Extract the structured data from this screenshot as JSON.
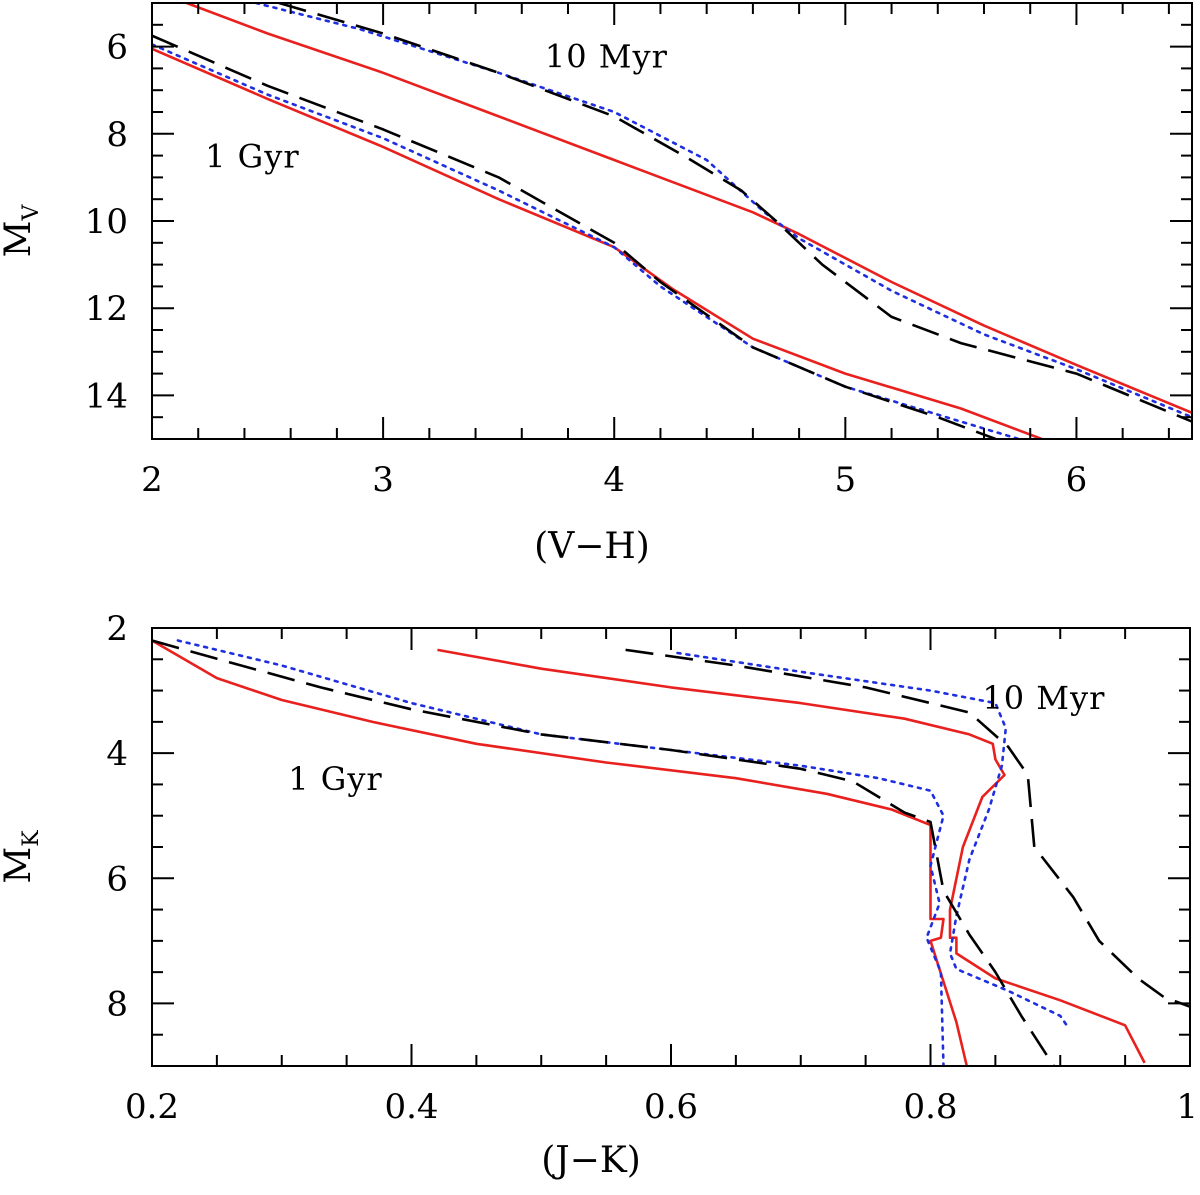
{
  "chart_data": [
    {
      "type": "line",
      "xlabel": "(V−H)",
      "ylabel": "M",
      "ylabel_sub": "V",
      "xlim": [
        2,
        6.5
      ],
      "ylim": [
        15,
        5
      ],
      "y_inverted": true,
      "x_ticks": [
        2,
        3,
        4,
        5,
        6
      ],
      "x_tick_labels": [
        "2",
        "3",
        "4",
        "5",
        "6"
      ],
      "x_minor_step": 0.2,
      "y_ticks": [
        6,
        8,
        10,
        12,
        14
      ],
      "y_tick_labels": [
        "6",
        "8",
        "10",
        "12",
        "14"
      ],
      "y_minor_step": 0.5,
      "annotations": [
        {
          "text": "10 Myr",
          "x": 3.7,
          "y": 6.2
        },
        {
          "text": "1 Gyr",
          "x": 2.23,
          "y": 8.5
        }
      ],
      "series": [
        {
          "style": "solid",
          "color": "#e8211f",
          "label": "10 Myr",
          "points": [
            [
              2.15,
              5.0
            ],
            [
              2.5,
              5.7
            ],
            [
              3.0,
              6.6
            ],
            [
              3.5,
              7.6
            ],
            [
              4.0,
              8.6
            ],
            [
              4.6,
              9.8
            ],
            [
              4.8,
              10.3
            ],
            [
              5.2,
              11.4
            ],
            [
              5.6,
              12.4
            ],
            [
              6.0,
              13.3
            ],
            [
              6.5,
              14.4
            ]
          ]
        },
        {
          "style": "dotted",
          "color": "#1f2fe0",
          "label": "10 Myr",
          "points": [
            [
              2.45,
              5.0
            ],
            [
              2.9,
              5.6
            ],
            [
              3.5,
              6.6
            ],
            [
              4.0,
              7.5
            ],
            [
              4.4,
              8.6
            ],
            [
              4.65,
              9.8
            ],
            [
              4.8,
              10.4
            ],
            [
              5.2,
              11.6
            ],
            [
              5.6,
              12.6
            ],
            [
              6.0,
              13.4
            ],
            [
              6.5,
              14.5
            ]
          ]
        },
        {
          "style": "dashed",
          "color": "#000000",
          "label": "10 Myr",
          "points": [
            [
              2.55,
              5.0
            ],
            [
              3.0,
              5.7
            ],
            [
              3.5,
              6.6
            ],
            [
              4.0,
              7.6
            ],
            [
              4.3,
              8.5
            ],
            [
              4.55,
              9.3
            ],
            [
              4.7,
              10.0
            ],
            [
              4.9,
              11.0
            ],
            [
              5.2,
              12.2
            ],
            [
              5.5,
              12.8
            ],
            [
              6.0,
              13.5
            ],
            [
              6.5,
              14.6
            ]
          ]
        },
        {
          "style": "solid",
          "color": "#e8211f",
          "label": "1 Gyr",
          "points": [
            [
              2.0,
              6.05
            ],
            [
              2.5,
              7.2
            ],
            [
              3.0,
              8.3
            ],
            [
              3.5,
              9.5
            ],
            [
              4.0,
              10.6
            ],
            [
              4.25,
              11.55
            ],
            [
              4.6,
              12.7
            ],
            [
              5.0,
              13.5
            ],
            [
              5.5,
              14.3
            ],
            [
              5.85,
              15.0
            ]
          ]
        },
        {
          "style": "dotted",
          "color": "#1f2fe0",
          "label": "1 Gyr",
          "points": [
            [
              2.0,
              5.95
            ],
            [
              2.5,
              7.1
            ],
            [
              3.0,
              8.1
            ],
            [
              3.5,
              9.3
            ],
            [
              4.0,
              10.6
            ],
            [
              4.2,
              11.5
            ],
            [
              4.6,
              12.9
            ],
            [
              5.0,
              13.8
            ],
            [
              5.5,
              14.6
            ],
            [
              5.75,
              15.0
            ]
          ]
        },
        {
          "style": "dashed",
          "color": "#000000",
          "label": "1 Gyr",
          "points": [
            [
              2.0,
              5.75
            ],
            [
              2.5,
              6.9
            ],
            [
              3.0,
              7.9
            ],
            [
              3.5,
              9.0
            ],
            [
              4.0,
              10.5
            ],
            [
              4.2,
              11.4
            ],
            [
              4.6,
              12.9
            ],
            [
              5.0,
              13.8
            ],
            [
              5.4,
              14.5
            ],
            [
              5.65,
              15.0
            ]
          ]
        }
      ]
    },
    {
      "type": "line",
      "xlabel": "(J−K)",
      "ylabel": "M",
      "ylabel_sub": "K",
      "xlim": [
        0.2,
        1.0
      ],
      "ylim": [
        9,
        2
      ],
      "y_inverted": true,
      "x_ticks": [
        0.2,
        0.4,
        0.6,
        0.8,
        1.0
      ],
      "x_tick_labels": [
        "0.2",
        "0.4",
        "0.6",
        "0.8",
        "1"
      ],
      "x_minor_step": 0.05,
      "y_ticks": [
        2,
        4,
        6,
        8
      ],
      "y_tick_labels": [
        "2",
        "4",
        "6",
        "8"
      ],
      "y_minor_step": 0.5,
      "annotations": [
        {
          "text": "10 Myr",
          "x": 0.84,
          "y": 3.1
        },
        {
          "text": "1 Gyr",
          "x": 0.305,
          "y": 4.4
        }
      ],
      "series": [
        {
          "style": "solid",
          "color": "#e8211f",
          "label": "10 Myr",
          "points": [
            [
              0.42,
              2.35
            ],
            [
              0.5,
              2.65
            ],
            [
              0.6,
              2.95
            ],
            [
              0.7,
              3.2
            ],
            [
              0.78,
              3.45
            ],
            [
              0.83,
              3.7
            ],
            [
              0.848,
              3.85
            ],
            [
              0.85,
              4.1
            ],
            [
              0.857,
              4.35
            ],
            [
              0.84,
              4.7
            ],
            [
              0.825,
              5.5
            ],
            [
              0.815,
              6.5
            ],
            [
              0.815,
              6.95
            ],
            [
              0.82,
              6.95
            ],
            [
              0.82,
              7.2
            ],
            [
              0.85,
              7.6
            ],
            [
              0.9,
              7.95
            ],
            [
              0.95,
              8.35
            ],
            [
              0.965,
              8.95
            ]
          ]
        },
        {
          "style": "dotted",
          "color": "#1f2fe0",
          "label": "10 Myr",
          "points": [
            [
              0.605,
              2.4
            ],
            [
              0.7,
              2.7
            ],
            [
              0.8,
              3.0
            ],
            [
              0.85,
              3.2
            ],
            [
              0.858,
              3.6
            ],
            [
              0.855,
              4.2
            ],
            [
              0.845,
              4.9
            ],
            [
              0.83,
              5.7
            ],
            [
              0.82,
              6.6
            ],
            [
              0.815,
              7.2
            ],
            [
              0.82,
              7.45
            ],
            [
              0.86,
              7.8
            ],
            [
              0.9,
              8.2
            ],
            [
              0.905,
              8.35
            ]
          ]
        },
        {
          "style": "dashed",
          "color": "#000000",
          "label": "10 Myr",
          "points": [
            [
              0.565,
              2.35
            ],
            [
              0.65,
              2.6
            ],
            [
              0.75,
              2.95
            ],
            [
              0.83,
              3.35
            ],
            [
              0.86,
              3.9
            ],
            [
              0.875,
              4.35
            ],
            [
              0.88,
              5.5
            ],
            [
              0.91,
              6.3
            ],
            [
              0.93,
              7.0
            ],
            [
              0.96,
              7.6
            ],
            [
              0.98,
              7.9
            ],
            [
              1.0,
              8.05
            ]
          ]
        },
        {
          "style": "solid",
          "color": "#e8211f",
          "label": "1 Gyr",
          "points": [
            [
              0.2,
              2.2
            ],
            [
              0.25,
              2.8
            ],
            [
              0.3,
              3.15
            ],
            [
              0.37,
              3.5
            ],
            [
              0.45,
              3.85
            ],
            [
              0.55,
              4.15
            ],
            [
              0.65,
              4.4
            ],
            [
              0.72,
              4.65
            ],
            [
              0.77,
              4.9
            ],
            [
              0.8,
              5.15
            ],
            [
              0.8,
              6.65
            ],
            [
              0.81,
              6.65
            ],
            [
              0.808,
              6.95
            ],
            [
              0.8,
              7.0
            ],
            [
              0.82,
              8.3
            ],
            [
              0.828,
              9.0
            ]
          ]
        },
        {
          "style": "dotted",
          "color": "#1f2fe0",
          "label": "1 Gyr",
          "points": [
            [
              0.22,
              2.2
            ],
            [
              0.3,
              2.6
            ],
            [
              0.4,
              3.2
            ],
            [
              0.5,
              3.7
            ],
            [
              0.6,
              3.95
            ],
            [
              0.7,
              4.2
            ],
            [
              0.76,
              4.4
            ],
            [
              0.8,
              4.6
            ],
            [
              0.81,
              5.0
            ],
            [
              0.8,
              5.8
            ],
            [
              0.807,
              6.4
            ],
            [
              0.797,
              6.95
            ],
            [
              0.808,
              7.5
            ],
            [
              0.81,
              9.0
            ]
          ]
        },
        {
          "style": "dashed",
          "color": "#000000",
          "label": "1 Gyr",
          "points": [
            [
              0.2,
              2.2
            ],
            [
              0.26,
              2.55
            ],
            [
              0.33,
              2.95
            ],
            [
              0.4,
              3.3
            ],
            [
              0.5,
              3.7
            ],
            [
              0.6,
              3.95
            ],
            [
              0.7,
              4.25
            ],
            [
              0.74,
              4.45
            ],
            [
              0.78,
              4.95
            ],
            [
              0.8,
              5.1
            ],
            [
              0.81,
              6.2
            ],
            [
              0.83,
              6.9
            ],
            [
              0.85,
              7.5
            ],
            [
              0.87,
              8.2
            ],
            [
              0.895,
              9.0
            ]
          ]
        }
      ]
    }
  ]
}
